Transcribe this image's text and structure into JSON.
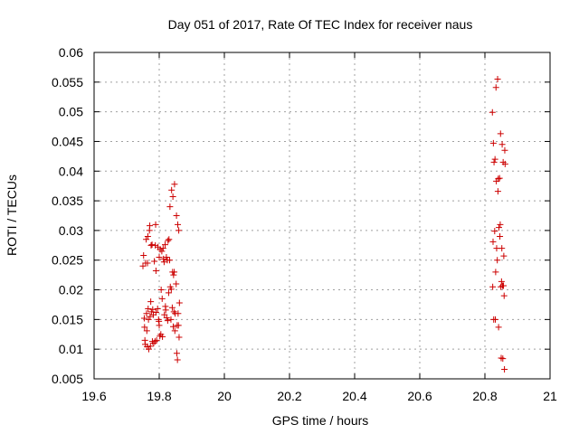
{
  "chart_data": {
    "type": "scatter",
    "title": "Day 051 of 2017, Rate Of TEC Index for receiver naus",
    "xlabel": "GPS time / hours",
    "ylabel": "ROTI / TECUs",
    "xlim": [
      19.6,
      21
    ],
    "ylim": [
      0.005,
      0.06
    ],
    "xticks": [
      "19.6",
      "19.8",
      "20",
      "20.2",
      "20.4",
      "20.6",
      "20.8",
      "21"
    ],
    "yticks": [
      "0.005",
      "0.01",
      "0.015",
      "0.02",
      "0.025",
      "0.03",
      "0.035",
      "0.04",
      "0.045",
      "0.05",
      "0.055",
      "0.06"
    ],
    "grid": true,
    "marker": "plus",
    "marker_color": "#cc0000",
    "points": [
      [
        19.75,
        0.024
      ],
      [
        19.752,
        0.0258
      ],
      [
        19.754,
        0.0152
      ],
      [
        19.755,
        0.0137
      ],
      [
        19.756,
        0.0115
      ],
      [
        19.757,
        0.0108
      ],
      [
        19.758,
        0.0245
      ],
      [
        19.76,
        0.0285
      ],
      [
        19.761,
        0.016
      ],
      [
        19.762,
        0.0131
      ],
      [
        19.763,
        0.0104
      ],
      [
        19.764,
        0.0245
      ],
      [
        19.765,
        0.029
      ],
      [
        19.766,
        0.0168
      ],
      [
        19.767,
        0.015
      ],
      [
        19.768,
        0.01
      ],
      [
        19.77,
        0.03
      ],
      [
        19.771,
        0.0308
      ],
      [
        19.772,
        0.0155
      ],
      [
        19.773,
        0.0105
      ],
      [
        19.774,
        0.018
      ],
      [
        19.775,
        0.0275
      ],
      [
        19.776,
        0.0163
      ],
      [
        19.778,
        0.0276
      ],
      [
        19.779,
        0.0113
      ],
      [
        19.78,
        0.0167
      ],
      [
        19.782,
        0.0158
      ],
      [
        19.783,
        0.011
      ],
      [
        19.785,
        0.0248
      ],
      [
        19.787,
        0.0113
      ],
      [
        19.788,
        0.0275
      ],
      [
        19.789,
        0.031
      ],
      [
        19.79,
        0.0162
      ],
      [
        19.79,
        0.0232
      ],
      [
        19.792,
        0.0115
      ],
      [
        19.795,
        0.0168
      ],
      [
        19.796,
        0.0272
      ],
      [
        19.798,
        0.015
      ],
      [
        19.799,
        0.0147
      ],
      [
        19.8,
        0.014
      ],
      [
        19.8,
        0.0255
      ],
      [
        19.802,
        0.0122
      ],
      [
        19.803,
        0.0268
      ],
      [
        19.805,
        0.0125
      ],
      [
        19.806,
        0.02
      ],
      [
        19.808,
        0.0265
      ],
      [
        19.809,
        0.0185
      ],
      [
        19.81,
        0.0121
      ],
      [
        19.812,
        0.027
      ],
      [
        19.813,
        0.0252
      ],
      [
        19.815,
        0.0247
      ],
      [
        19.816,
        0.0158
      ],
      [
        19.818,
        0.0276
      ],
      [
        19.819,
        0.0172
      ],
      [
        19.82,
        0.0166
      ],
      [
        19.822,
        0.0255
      ],
      [
        19.823,
        0.0153
      ],
      [
        19.825,
        0.025
      ],
      [
        19.826,
        0.0148
      ],
      [
        19.827,
        0.0283
      ],
      [
        19.829,
        0.0195
      ],
      [
        19.83,
        0.0285
      ],
      [
        19.832,
        0.025
      ],
      [
        19.833,
        0.034
      ],
      [
        19.834,
        0.0205
      ],
      [
        19.836,
        0.015
      ],
      [
        19.837,
        0.0201
      ],
      [
        19.838,
        0.0368
      ],
      [
        19.84,
        0.017
      ],
      [
        19.841,
        0.023
      ],
      [
        19.842,
        0.0357
      ],
      [
        19.843,
        0.0138
      ],
      [
        19.844,
        0.0225
      ],
      [
        19.845,
        0.0163
      ],
      [
        19.846,
        0.023
      ],
      [
        19.847,
        0.0378
      ],
      [
        19.848,
        0.0131
      ],
      [
        19.849,
        0.016
      ],
      [
        19.852,
        0.021
      ],
      [
        19.853,
        0.0325
      ],
      [
        19.854,
        0.0093
      ],
      [
        19.855,
        0.014
      ],
      [
        19.856,
        0.0082
      ],
      [
        19.857,
        0.031
      ],
      [
        19.858,
        0.016
      ],
      [
        19.859,
        0.014
      ],
      [
        19.86,
        0.03
      ],
      [
        19.861,
        0.012
      ],
      [
        19.862,
        0.0178
      ],
      [
        20.823,
        0.0499
      ],
      [
        20.824,
        0.0205
      ],
      [
        20.825,
        0.0281
      ],
      [
        20.826,
        0.0447
      ],
      [
        20.827,
        0.015
      ],
      [
        20.828,
        0.0415
      ],
      [
        20.83,
        0.0299
      ],
      [
        20.831,
        0.042
      ],
      [
        20.832,
        0.015
      ],
      [
        20.833,
        0.023
      ],
      [
        20.834,
        0.0541
      ],
      [
        20.835,
        0.0383
      ],
      [
        20.836,
        0.027
      ],
      [
        20.838,
        0.025
      ],
      [
        20.839,
        0.0555
      ],
      [
        20.84,
        0.0366
      ],
      [
        20.841,
        0.0387
      ],
      [
        20.842,
        0.0137
      ],
      [
        20.843,
        0.0305
      ],
      [
        20.845,
        0.0388
      ],
      [
        20.846,
        0.029
      ],
      [
        20.847,
        0.031
      ],
      [
        20.848,
        0.0463
      ],
      [
        20.849,
        0.0205
      ],
      [
        20.85,
        0.0085
      ],
      [
        20.851,
        0.0214
      ],
      [
        20.852,
        0.027
      ],
      [
        20.853,
        0.0445
      ],
      [
        20.854,
        0.0207
      ],
      [
        20.855,
        0.0084
      ],
      [
        20.856,
        0.0415
      ],
      [
        20.857,
        0.0207
      ],
      [
        20.858,
        0.0257
      ],
      [
        20.859,
        0.019
      ],
      [
        20.86,
        0.0066
      ],
      [
        20.861,
        0.0435
      ],
      [
        20.862,
        0.0412
      ]
    ]
  }
}
